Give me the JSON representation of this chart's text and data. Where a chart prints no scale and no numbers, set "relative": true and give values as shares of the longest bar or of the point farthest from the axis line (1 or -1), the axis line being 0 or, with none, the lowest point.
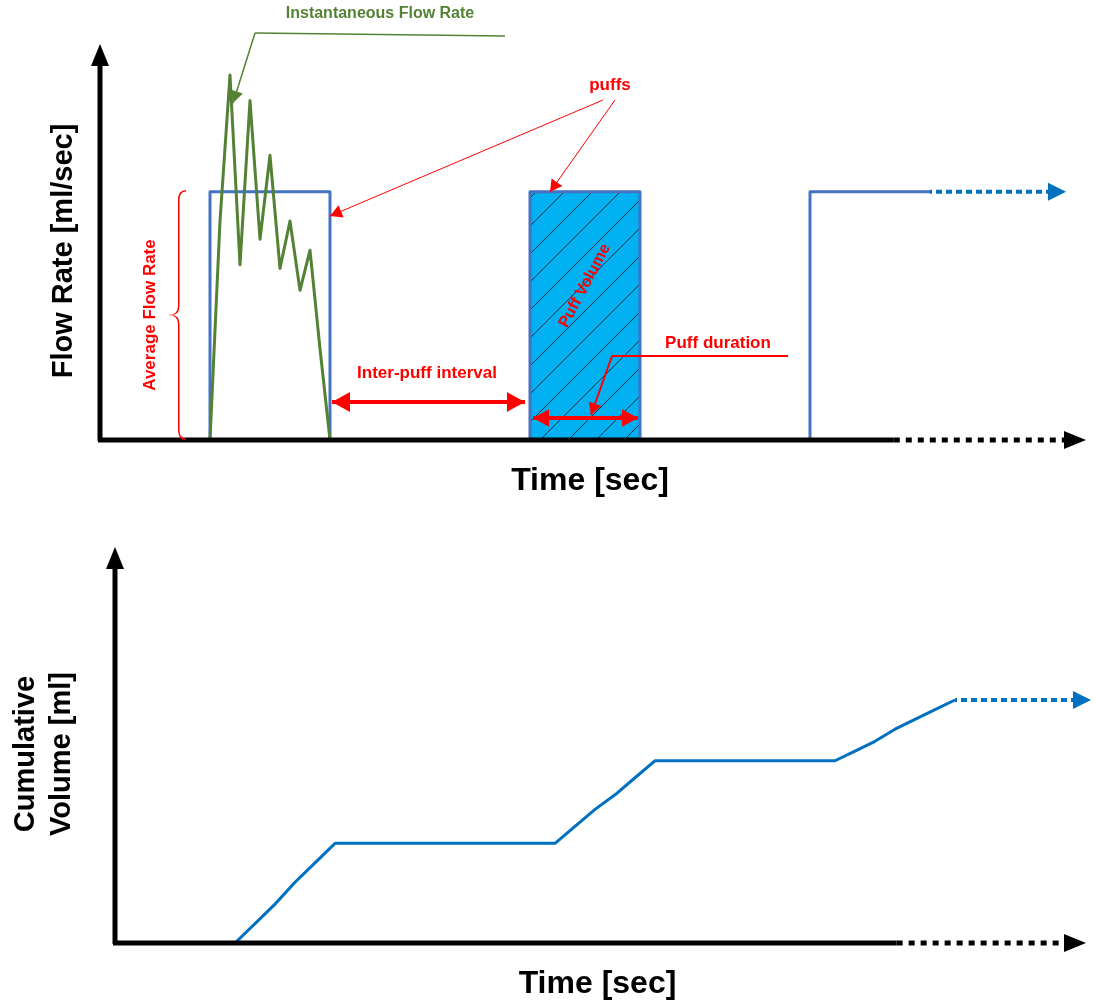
{
  "chart_data": [
    {
      "type": "line",
      "relative": true,
      "xlabel": "Time [sec]",
      "ylabel": "Flow Rate [ml/sec]",
      "categories": [
        null,
        null,
        null,
        null,
        null,
        null,
        null,
        null,
        null,
        null,
        null,
        null,
        null,
        null,
        null,
        null,
        null,
        null,
        null,
        null,
        null,
        null,
        null,
        null,
        null,
        null,
        null,
        null,
        null,
        null,
        null,
        null,
        null,
        null,
        null,
        null,
        null,
        null,
        null,
        null,
        null,
        null,
        null,
        null,
        null,
        null,
        null,
        null,
        null,
        null,
        null,
        null,
        null,
        null,
        null,
        null,
        null,
        null,
        null,
        null,
        null,
        null,
        null,
        null,
        null,
        null,
        null,
        null,
        null,
        null,
        null,
        null,
        null,
        null,
        null,
        null,
        null,
        null,
        null,
        null,
        null,
        null,
        null,
        null,
        null,
        null,
        null,
        null,
        null,
        null,
        null,
        null,
        null,
        null,
        null,
        null
      ],
      "series": [
        {
          "name": "Puff Volume",
          "type": "area",
          "color": "#00b0f0",
          "values": [
            null,
            null,
            null,
            null,
            null,
            null,
            null,
            null,
            null,
            null,
            null,
            null,
            null,
            null,
            null,
            null,
            null,
            null,
            null,
            null,
            null,
            null,
            null,
            null,
            null,
            null,
            null,
            null,
            null,
            null,
            null,
            null,
            null,
            null,
            null,
            null,
            null,
            null,
            null,
            null,
            null,
            null,
            null,
            0.68,
            0.68,
            0.68,
            0.68,
            0.68,
            0.68,
            0.68,
            0.68,
            0.68,
            0.68,
            0.68,
            0.68,
            null,
            null,
            null,
            null,
            null,
            null,
            null,
            null,
            null,
            null,
            null,
            null,
            null,
            null,
            null,
            null,
            null,
            null,
            null,
            null,
            null,
            null,
            null,
            null,
            null,
            null,
            null,
            null,
            null,
            null,
            null,
            null,
            null,
            null,
            null,
            null,
            null,
            null,
            null,
            null,
            null
          ]
        },
        {
          "type": "step",
          "color": "#4472c4",
          "values": [
            null,
            null,
            null,
            null,
            null,
            null,
            null,
            null,
            null,
            null,
            0,
            0.68,
            0.68,
            0.68,
            0.68,
            0.68,
            0.68,
            0.68,
            0.68,
            0.68,
            0.68,
            0.68,
            0.68,
            0,
            0,
            0,
            0,
            0,
            0,
            0,
            0,
            0,
            0,
            0,
            0,
            0,
            0,
            0,
            0,
            0,
            0,
            0,
            0,
            0.68,
            0.68,
            0.68,
            0.68,
            0.68,
            0.68,
            0.68,
            0.68,
            0.68,
            0.68,
            0.68,
            0,
            0,
            0,
            0,
            0,
            0,
            0,
            0,
            0,
            0,
            0,
            0,
            0,
            0,
            0,
            0,
            0,
            0.68,
            0.68,
            0.68,
            0.68,
            0.68,
            0.68,
            0.68,
            0.68,
            0.68,
            0.68,
            0.68,
            0.68,
            0.68,
            null,
            null,
            null,
            null,
            null,
            null,
            null,
            null,
            null,
            null,
            null,
            null
          ]
        },
        {
          "name": "Instantaneous Flow Rate",
          "color": "#548235",
          "values": [
            null,
            null,
            null,
            null,
            null,
            null,
            null,
            null,
            null,
            null,
            null,
            0,
            0.6,
            1,
            0.48,
            0.93,
            0.55,
            0.78,
            0.47,
            0.6,
            0.41,
            0.52,
            0.25,
            0,
            null,
            null,
            null,
            null,
            null,
            null,
            null,
            null,
            null,
            null,
            null,
            null,
            null,
            null,
            null,
            null,
            null,
            null,
            null,
            null,
            null,
            null,
            null,
            null,
            null,
            null,
            null,
            null,
            null,
            null,
            null,
            null,
            null,
            null,
            null,
            null,
            null,
            null,
            null,
            null,
            null,
            null,
            null,
            null,
            null,
            null,
            null,
            null,
            null,
            null,
            null,
            null,
            null,
            null,
            null,
            null,
            null,
            null,
            null,
            null,
            null,
            null,
            null,
            null,
            null,
            null,
            null,
            null,
            null,
            null,
            null,
            null
          ]
        }
      ],
      "annotations": [
        "puffs",
        "Average Flow Rate",
        "Inter-puff interval",
        "Puff duration"
      ]
    },
    {
      "type": "line",
      "relative": true,
      "xlabel": "Time [sec]",
      "ylabel": "Cumulative Volume [ml]",
      "categories": [
        null,
        null,
        null,
        null,
        null,
        null,
        null,
        null,
        null,
        null,
        null,
        null,
        null,
        null,
        null,
        null,
        null,
        null,
        null,
        null,
        null,
        null,
        null,
        null,
        null,
        null,
        null,
        null,
        null,
        null,
        null,
        null,
        null,
        null,
        null,
        null,
        null,
        null,
        null,
        null,
        null,
        null,
        null,
        null,
        null,
        null,
        null,
        null
      ],
      "series": [
        {
          "color": "#0070c0",
          "values": [
            null,
            null,
            null,
            null,
            null,
            null,
            0,
            0.08,
            0.16,
            0.25,
            0.33,
            0.41,
            0.41,
            0.41,
            0.41,
            0.41,
            0.41,
            0.41,
            0.41,
            0.41,
            0.41,
            0.41,
            0.41,
            0.48,
            0.55,
            0.61,
            0.68,
            0.75,
            0.75,
            0.75,
            0.75,
            0.75,
            0.75,
            0.75,
            0.75,
            0.75,
            0.75,
            0.79,
            0.83,
            0.88,
            0.92,
            0.96,
            1,
            null,
            null,
            null,
            null,
            null
          ]
        }
      ]
    }
  ]
}
